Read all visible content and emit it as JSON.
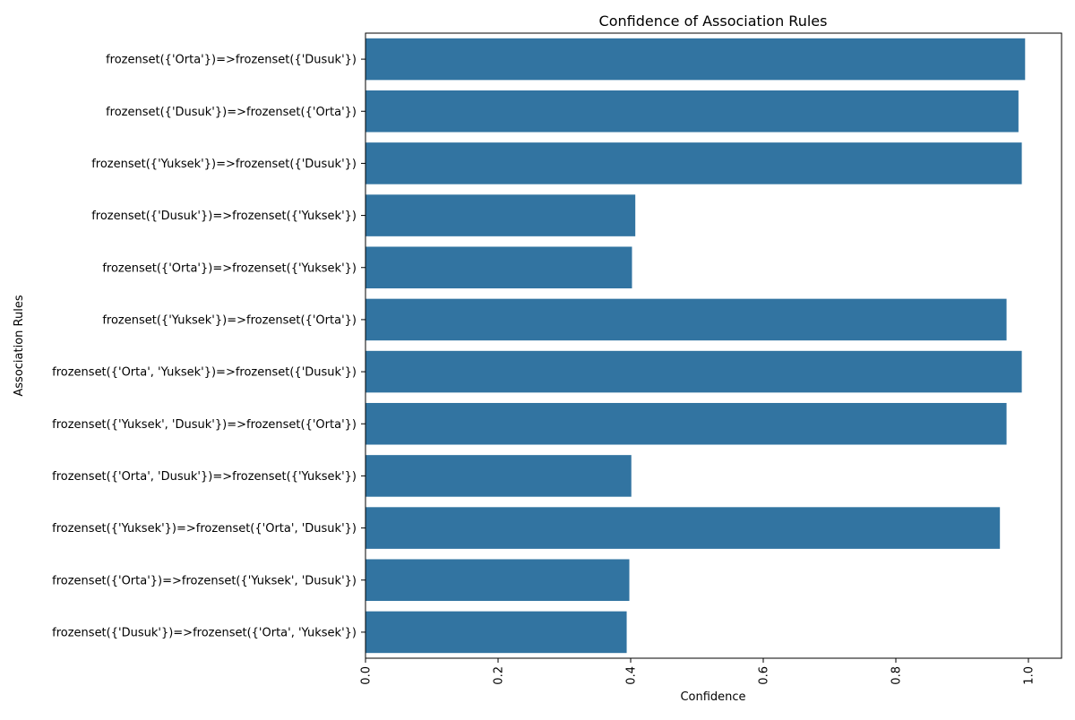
{
  "chart_data": {
    "type": "bar",
    "orientation": "horizontal",
    "title": "Confidence of Association Rules",
    "xlabel": "Confidence",
    "ylabel": "Association Rules",
    "xlim": [
      0,
      1.05
    ],
    "xticks": [
      "0.0",
      "0.2",
      "0.4",
      "0.6",
      "0.8",
      "1.0"
    ],
    "xtick_values": [
      0,
      0.2,
      0.4,
      0.6,
      0.8,
      1.0
    ],
    "bar_color": "#3274a1",
    "grid": false,
    "categories": [
      "frozenset({'Orta'})=>frozenset({'Dusuk'})",
      "frozenset({'Dusuk'})=>frozenset({'Orta'})",
      "frozenset({'Yuksek'})=>frozenset({'Dusuk'})",
      "frozenset({'Dusuk'})=>frozenset({'Yuksek'})",
      "frozenset({'Orta'})=>frozenset({'Yuksek'})",
      "frozenset({'Yuksek'})=>frozenset({'Orta'})",
      "frozenset({'Orta', 'Yuksek'})=>frozenset({'Dusuk'})",
      "frozenset({'Yuksek', 'Dusuk'})=>frozenset({'Orta'})",
      "frozenset({'Orta', 'Dusuk'})=>frozenset({'Yuksek'})",
      "frozenset({'Yuksek'})=>frozenset({'Orta', 'Dusuk'})",
      "frozenset({'Orta'})=>frozenset({'Yuksek', 'Dusuk'})",
      "frozenset({'Dusuk'})=>frozenset({'Orta', 'Yuksek'})"
    ],
    "values": [
      0.995,
      0.985,
      0.99,
      0.407,
      0.402,
      0.967,
      0.99,
      0.967,
      0.401,
      0.957,
      0.398,
      0.394
    ]
  }
}
